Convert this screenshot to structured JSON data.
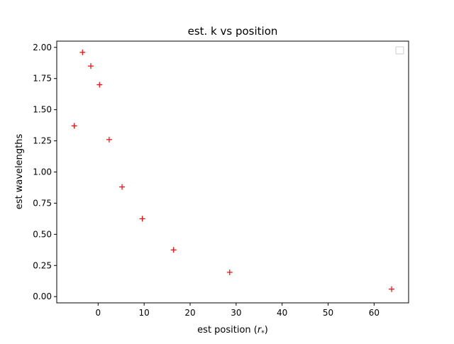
{
  "chart_data": {
    "type": "scatter",
    "title": "est. k vs position",
    "xlabel_text": "est position (",
    "xlabel_math": "r",
    "xlabel_sub": "*",
    "xlabel_close": ")",
    "ylabel": "est wavelengths",
    "xlim": [
      -9,
      67.5
    ],
    "ylim": [
      -0.05,
      2.05
    ],
    "xticks": [
      0,
      10,
      20,
      30,
      40,
      50,
      60
    ],
    "xtick_labels": [
      "0",
      "10",
      "20",
      "30",
      "40",
      "50",
      "60"
    ],
    "yticks": [
      0.0,
      0.25,
      0.5,
      0.75,
      1.0,
      1.25,
      1.5,
      1.75,
      2.0
    ],
    "ytick_labels": [
      "0.00",
      "0.25",
      "0.50",
      "0.75",
      "1.00",
      "1.25",
      "1.50",
      "1.75",
      "2.00"
    ],
    "grid": false,
    "legend": {
      "placement": "top-right",
      "entries": []
    },
    "series": [
      {
        "marker": "+",
        "color": "#ff0000",
        "points": [
          {
            "x": -5.2,
            "y": 1.37
          },
          {
            "x": -3.4,
            "y": 1.96
          },
          {
            "x": -1.6,
            "y": 1.85
          },
          {
            "x": 0.3,
            "y": 1.7
          },
          {
            "x": 2.4,
            "y": 1.26
          },
          {
            "x": 5.2,
            "y": 0.88
          },
          {
            "x": 9.6,
            "y": 0.625
          },
          {
            "x": 16.4,
            "y": 0.375
          },
          {
            "x": 28.6,
            "y": 0.195
          },
          {
            "x": 63.8,
            "y": 0.06
          }
        ]
      }
    ]
  }
}
